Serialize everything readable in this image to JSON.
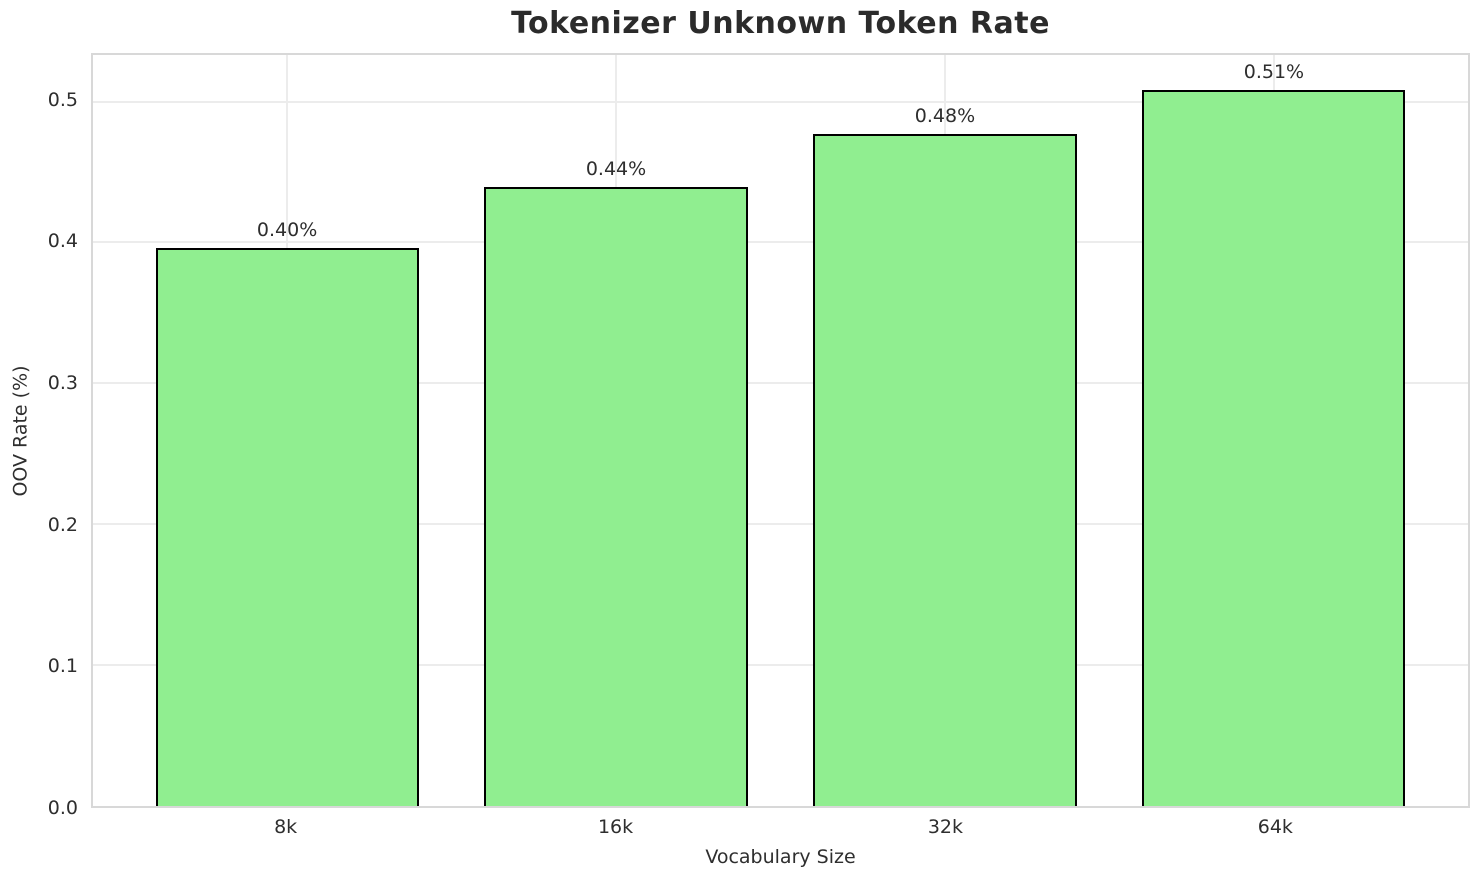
{
  "chart_data": {
    "type": "bar",
    "title": "Tokenizer Unknown Token Rate",
    "xlabel": "Vocabulary Size",
    "ylabel": "OOV Rate (%)",
    "categories": [
      "8k",
      "16k",
      "32k",
      "64k"
    ],
    "values": [
      0.396,
      0.439,
      0.477,
      0.508
    ],
    "value_labels": [
      "0.40%",
      "0.44%",
      "0.48%",
      "0.51%"
    ],
    "yticks": [
      {
        "value": 0.0,
        "label": "0.0"
      },
      {
        "value": 0.1,
        "label": "0.1"
      },
      {
        "value": 0.2,
        "label": "0.2"
      },
      {
        "value": 0.3,
        "label": "0.3"
      },
      {
        "value": 0.4,
        "label": "0.4"
      },
      {
        "value": 0.5,
        "label": "0.5"
      }
    ],
    "ylim": [
      0,
      0.533
    ],
    "grid": true,
    "legend_position": "none",
    "bar_relative_width": 0.8,
    "colors": {
      "bar_fill": "#90ee90",
      "bar_edge": "#000000",
      "grid": "#ececec",
      "spine": "#d8d8d8",
      "text": "#2e2e2e",
      "title_text": "#2b2b2b",
      "background": "#ffffff"
    }
  }
}
